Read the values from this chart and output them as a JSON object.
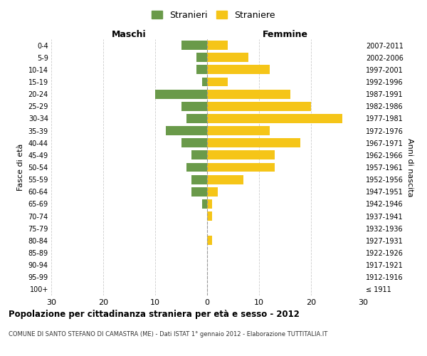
{
  "age_groups": [
    "100+",
    "95-99",
    "90-94",
    "85-89",
    "80-84",
    "75-79",
    "70-74",
    "65-69",
    "60-64",
    "55-59",
    "50-54",
    "45-49",
    "40-44",
    "35-39",
    "30-34",
    "25-29",
    "20-24",
    "15-19",
    "10-14",
    "5-9",
    "0-4"
  ],
  "birth_years": [
    "≤ 1911",
    "1912-1916",
    "1917-1921",
    "1922-1926",
    "1927-1931",
    "1932-1936",
    "1937-1941",
    "1942-1946",
    "1947-1951",
    "1952-1956",
    "1957-1961",
    "1962-1966",
    "1967-1971",
    "1972-1976",
    "1977-1981",
    "1982-1986",
    "1987-1991",
    "1992-1996",
    "1997-2001",
    "2002-2006",
    "2007-2011"
  ],
  "males": [
    0,
    0,
    0,
    0,
    0,
    0,
    0,
    1,
    3,
    3,
    4,
    3,
    5,
    8,
    4,
    5,
    10,
    1,
    2,
    2,
    5
  ],
  "females": [
    0,
    0,
    0,
    0,
    1,
    0,
    1,
    1,
    2,
    7,
    13,
    13,
    18,
    12,
    26,
    20,
    16,
    4,
    12,
    8,
    4
  ],
  "male_color": "#6a9a4a",
  "female_color": "#f5c518",
  "male_label": "Stranieri",
  "female_label": "Straniere",
  "title": "Popolazione per cittadinanza straniera per età e sesso - 2012",
  "subtitle": "COMUNE DI SANTO STEFANO DI CAMASTRA (ME) - Dati ISTAT 1° gennaio 2012 - Elaborazione TUTTITALIA.IT",
  "xlabel_left": "Maschi",
  "xlabel_right": "Femmine",
  "ylabel_left": "Fasce di età",
  "ylabel_right": "Anni di nascita",
  "xlim": 30,
  "background_color": "#ffffff",
  "grid_color": "#cccccc"
}
